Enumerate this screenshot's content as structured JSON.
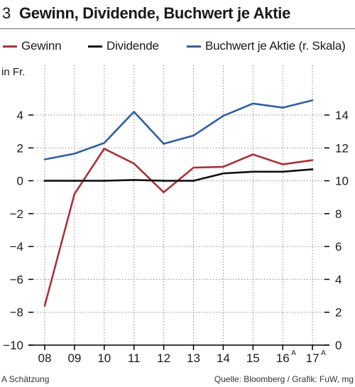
{
  "header": {
    "number": "3",
    "title": "Gewinn, Dividende, Buchwert je Aktie"
  },
  "unit_label": "in Fr.",
  "footnote": "A Schätzung",
  "source": "Quelle: Bloomberg / Grafik: FuW, mg",
  "colors": {
    "gewinn": "#a83338",
    "dividende": "#111111",
    "buchwert": "#2f5f9e",
    "grid": "#8a8a8a"
  },
  "chart_data": {
    "type": "line",
    "title": "Gewinn, Dividende, Buchwert je Aktie",
    "categories": [
      "08",
      "09",
      "10",
      "11",
      "12",
      "13",
      "14",
      "15",
      "16",
      "17"
    ],
    "category_superscripts": [
      "",
      "",
      "",
      "",
      "",
      "",
      "",
      "",
      "A",
      "A"
    ],
    "y_left": {
      "lim": [
        -10,
        5
      ],
      "ticks": [
        -10,
        -8,
        -6,
        -4,
        -2,
        0,
        2,
        4
      ],
      "tick_labels": [
        "−10",
        "−8",
        "−6",
        "−4",
        "−2",
        "0",
        "2",
        "4"
      ]
    },
    "y_right": {
      "label": "r. Skala",
      "lim": [
        0,
        15
      ],
      "ticks": [
        0,
        2,
        4,
        6,
        8,
        10,
        12,
        14
      ],
      "tick_labels": [
        "0",
        "2",
        "4",
        "6",
        "8",
        "10",
        "12",
        "14"
      ]
    },
    "grid": true,
    "legend_position": "top",
    "series": [
      {
        "name": "Gewinn",
        "axis": "left",
        "color": "#a83338",
        "values": [
          -7.6,
          -0.8,
          1.95,
          1.05,
          -0.7,
          0.8,
          0.85,
          1.6,
          1.0,
          1.25
        ]
      },
      {
        "name": "Dividende",
        "axis": "left",
        "color": "#111111",
        "values": [
          0.0,
          0.0,
          0.0,
          0.05,
          0.0,
          0.0,
          0.45,
          0.55,
          0.55,
          0.7
        ]
      },
      {
        "name": "Buchwert je Aktie (r. Skala)",
        "axis": "right",
        "color": "#2f5f9e",
        "values": [
          11.3,
          11.65,
          12.3,
          14.2,
          12.25,
          12.75,
          13.95,
          14.7,
          14.45,
          14.9
        ]
      }
    ]
  }
}
